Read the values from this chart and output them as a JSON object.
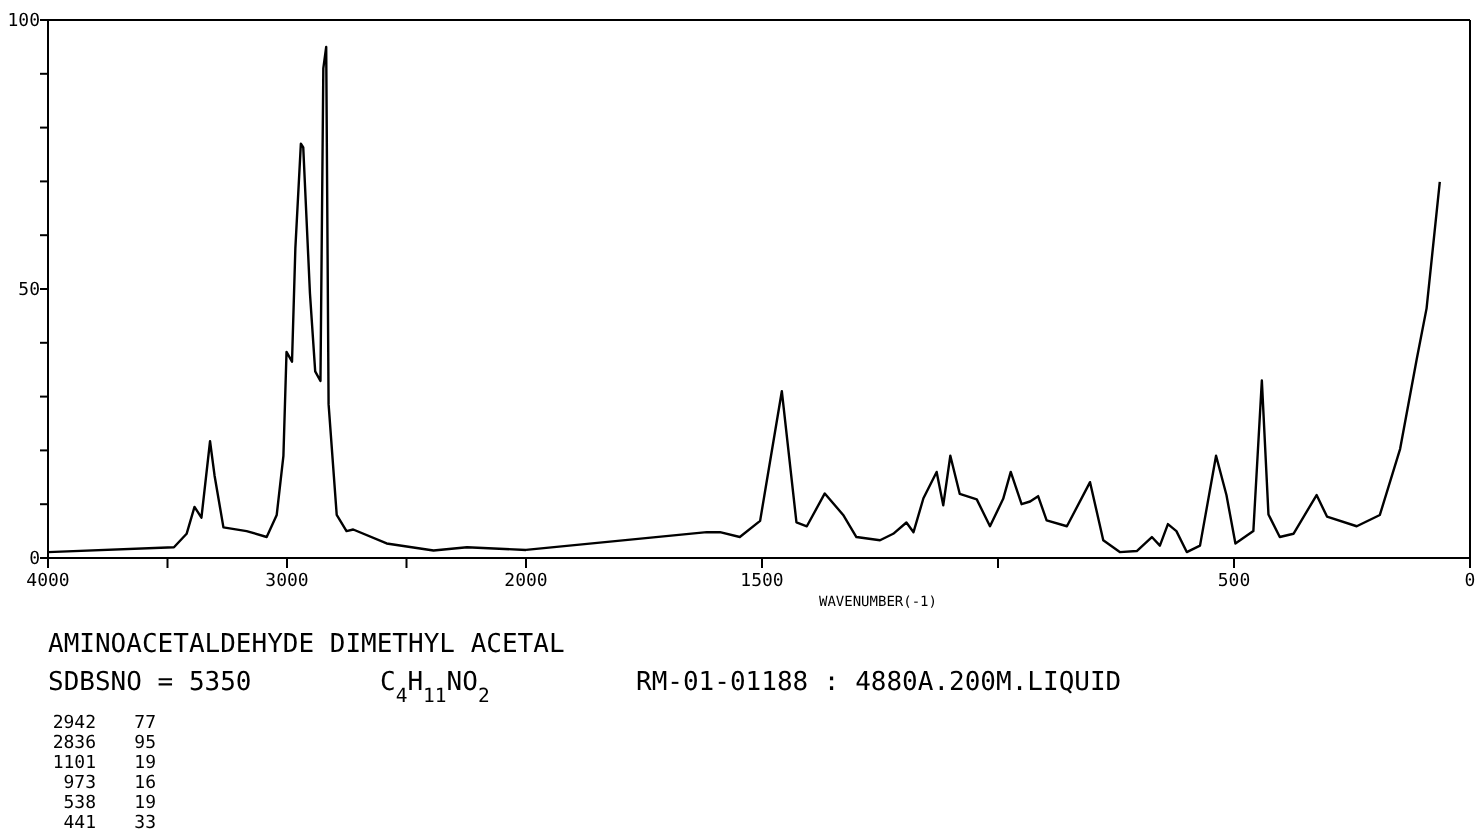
{
  "chart_data": [
    {
      "type": "line",
      "title": "AMINOACETALDEHYDE DIMETHYL ACETAL",
      "annotations": [
        "SDBSNO = 5350",
        "C$_{4}$H$_{11}$NO$_{2}$",
        "RM-01-01188 : 4880A.200M.LIQUID",
        "2942 77",
        "2836 95",
        "1101 19",
        "973 16",
        "538 19",
        "441 33"
      ],
      "xlim": [
        4000,
        2000
      ],
      "xticks": [
        4000,
        {
          "value": 3500,
          "label": null
        },
        3000,
        {
          "value": 2500,
          "label": null
        },
        {
          "value": 2000,
          "label": null
        }
      ],
      "ylim": [
        0,
        100
      ],
      "yticks": [
        0,
        {
          "value": 10,
          "label": null
        },
        {
          "value": 20,
          "label": null
        },
        {
          "value": 30,
          "label": null
        },
        {
          "value": 40,
          "label": null
        },
        50,
        {
          "value": 60,
          "label": null
        },
        {
          "value": 70,
          "label": null
        },
        {
          "value": 80,
          "label": null
        },
        {
          "value": 90,
          "label": null
        },
        100
      ],
      "series": [
        {
          "color": "#000000",
          "x": [
            4000,
            3473,
            3420,
            3387,
            3358,
            3322,
            3303,
            3266,
            3169,
            3085,
            3043,
            3015,
            3002,
            2979,
            2965,
            2942,
            2932,
            2904,
            2882,
            2860,
            2848,
            2836,
            2826,
            2792,
            2751,
            2723,
            2583,
            2387,
            2247,
            2000
          ],
          "values": [
            1.1,
            2.0,
            4.5,
            9.5,
            7.5,
            21.7,
            15.3,
            5.7,
            5.0,
            3.9,
            8.0,
            19,
            38.3,
            36.5,
            57.6,
            77,
            76.3,
            49.2,
            34.7,
            32.9,
            91,
            95,
            28.6,
            8.0,
            5.0,
            5.3,
            2.7,
            1.4,
            2.0,
            1.5
          ]
        }
      ]
    },
    {
      "type": "line",
      "xlabel": "WAVENUMBER(-1)",
      "tick_labels": "x",
      "xlim": [
        2000,
        0
      ],
      "xticks": [
        {
          "value": 2000,
          "label": "2000"
        },
        1500,
        {
          "value": 1000,
          "label": null
        },
        500,
        0
      ],
      "ylim": [
        0,
        100
      ],
      "series": [
        {
          "color": "#000000",
          "x": [
            2000,
            1617,
            1589,
            1547,
            1504,
            1458,
            1427,
            1405,
            1367,
            1328,
            1300,
            1250,
            1222,
            1194,
            1179,
            1158,
            1130,
            1116,
            1101,
            1081,
            1045,
            1017,
            989,
            973,
            950,
            932,
            915,
            897,
            854,
            805,
            777,
            742,
            706,
            674,
            657,
            640,
            622,
            600,
            572,
            538,
            516,
            497,
            459,
            441,
            427,
            403,
            374,
            325,
            303,
            240,
            191,
            148,
            113,
            92,
            64
          ],
          "values": [
            1.5,
            4.8,
            4.8,
            3.9,
            6.9,
            31,
            6.6,
            5.9,
            12,
            8,
            3.9,
            3.3,
            4.5,
            6.6,
            4.8,
            11.1,
            16,
            9.8,
            19,
            11.9,
            10.9,
            5.9,
            11,
            16,
            10,
            10.5,
            11.5,
            7,
            5.9,
            14.1,
            3.3,
            1.1,
            1.3,
            3.9,
            2.3,
            6.3,
            5,
            1.1,
            2.3,
            19,
            11.7,
            2.7,
            5,
            33,
            8.1,
            3.9,
            4.5,
            11.7,
            7.7,
            5.9,
            8,
            20.3,
            36.9,
            46.4,
            69.9
          ]
        }
      ]
    }
  ]
}
